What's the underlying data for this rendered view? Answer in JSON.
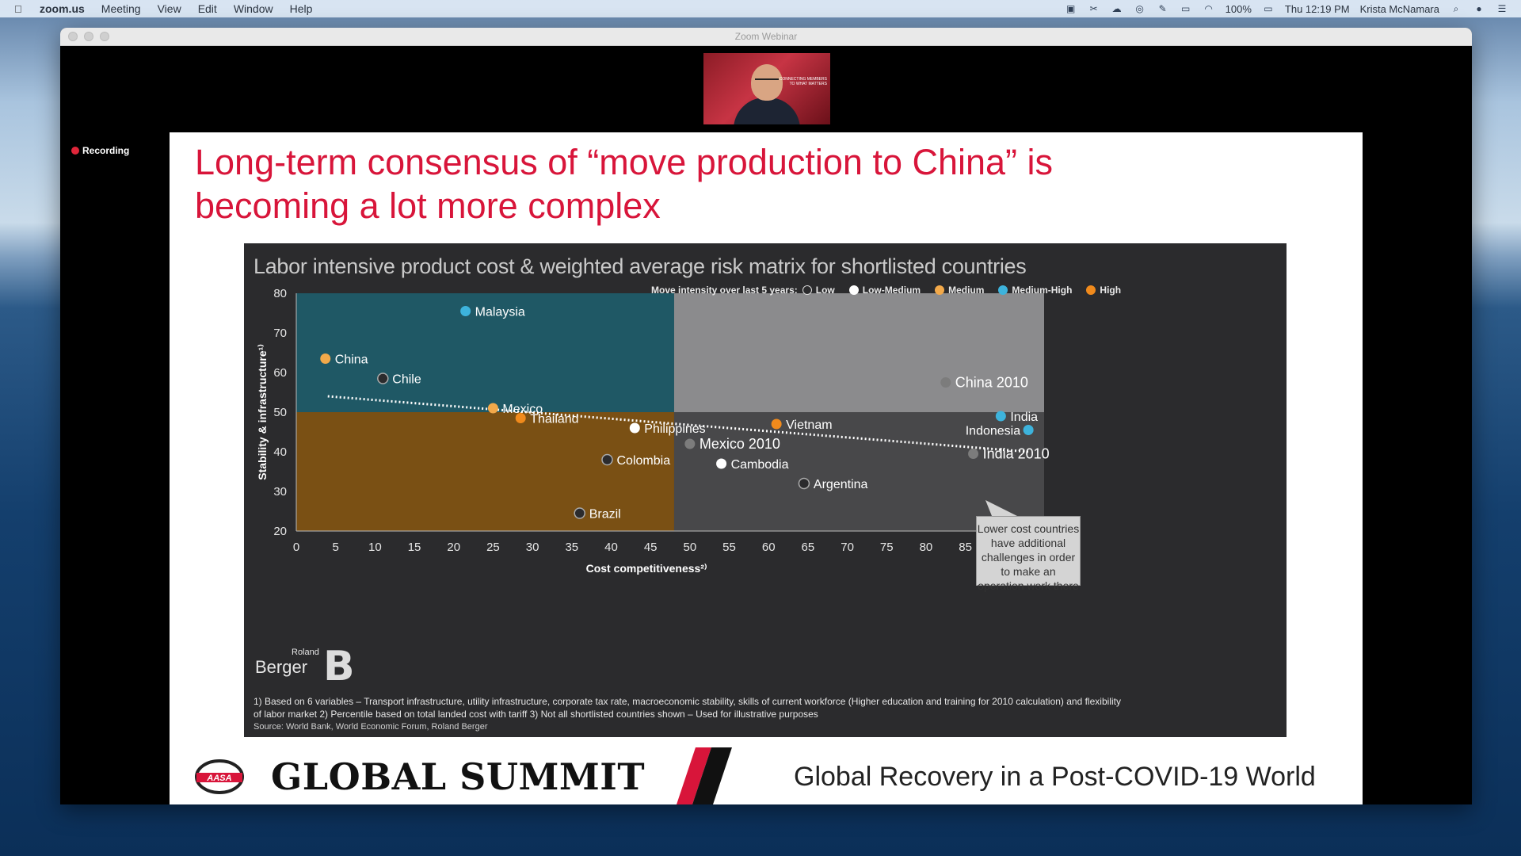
{
  "menubar": {
    "app": "zoom.us",
    "menus": [
      "Meeting",
      "View",
      "Edit",
      "Window",
      "Help"
    ],
    "battery": "100%",
    "clock": "Thu 12:19 PM",
    "user": "Krista McNamara"
  },
  "window": {
    "title": "Zoom Webinar",
    "recording_label": "Recording",
    "thumb_text": "CONNECTING MEMBERS TO WHAT MATTERS"
  },
  "slide": {
    "title_line1": "Long-term consensus of “move production to China” is",
    "title_line2": "becoming a lot more complex",
    "footnote1": "1) Based on 6 variables – Transport infrastructure, utility infrastructure, corporate tax rate, macroeconomic stability, skills of current workforce (Higher education and training for 2010 calculation) and flexibility",
    "footnote2": "of labor market   2) Percentile based on total landed cost with tariff   3) Not all shortlisted countries shown – Used for illustrative purposes",
    "source": "Source: World Bank, World Economic Forum, Roland Berger",
    "logo_small": "Roland",
    "logo_big": "Berger",
    "logo_mark": "B",
    "callout": "Lower cost countries have additional challenges in order to make an operation work there",
    "banner_logo": "AASA",
    "banner_title": "GLOBAL SUMMIT",
    "banner_tagline": "Global Recovery in a Post-COVID-19 World"
  },
  "chart_data": {
    "type": "scatter",
    "title": "Labor intensive product cost & weighted average risk matrix for shortlisted countries",
    "xlabel": "Cost competitiveness²⁾",
    "ylabel": "Stability & infrastructure¹⁾",
    "xlim": [
      0,
      95
    ],
    "ylim": [
      20,
      80
    ],
    "xticks": [
      0,
      5,
      10,
      15,
      20,
      25,
      30,
      35,
      40,
      45,
      50,
      55,
      60,
      65,
      70,
      75,
      80,
      85
    ],
    "yticks": [
      20,
      30,
      40,
      50,
      60,
      70,
      80
    ],
    "legend_title": "Move intensity over last 5 years:",
    "legend": [
      {
        "label": "Low",
        "color": "#2b2b2d"
      },
      {
        "label": "Low-Medium",
        "color": "#ffffff"
      },
      {
        "label": "Medium",
        "color": "#f2a94a"
      },
      {
        "label": "Medium-High",
        "color": "#3db3dc"
      },
      {
        "label": "High",
        "color": "#f08a1c"
      }
    ],
    "points": [
      {
        "label": "Malaysia",
        "x": 21.5,
        "y": 75.5,
        "category": "Medium-High"
      },
      {
        "label": "China",
        "x": 3.7,
        "y": 63.5,
        "category": "Medium"
      },
      {
        "label": "Chile",
        "x": 11,
        "y": 58.5,
        "category": "Low"
      },
      {
        "label": "Mexico",
        "x": 25,
        "y": 51,
        "category": "Medium"
      },
      {
        "label": "Thailand",
        "x": 28.5,
        "y": 48.5,
        "category": "High"
      },
      {
        "label": "Philippines",
        "x": 43,
        "y": 46,
        "category": "Low-Medium"
      },
      {
        "label": "Colombia",
        "x": 39.5,
        "y": 38,
        "category": "Low"
      },
      {
        "label": "Brazil",
        "x": 36,
        "y": 24.5,
        "category": "Low"
      },
      {
        "label": "Mexico 2010",
        "x": 50,
        "y": 42,
        "category": "2010"
      },
      {
        "label": "Cambodia",
        "x": 54,
        "y": 37,
        "category": "Low-Medium"
      },
      {
        "label": "Vietnam",
        "x": 61,
        "y": 47,
        "category": "High"
      },
      {
        "label": "Argentina",
        "x": 64.5,
        "y": 32,
        "category": "Low"
      },
      {
        "label": "China 2010",
        "x": 82.5,
        "y": 57.5,
        "category": "2010"
      },
      {
        "label": "India",
        "x": 89.5,
        "y": 49,
        "category": "Medium-High"
      },
      {
        "label": "Indonesia",
        "x": 93,
        "y": 45.5,
        "category": "Medium-High"
      },
      {
        "label": "India 2010",
        "x": 86,
        "y": 39.5,
        "category": "2010"
      }
    ],
    "trendline": {
      "from": [
        4,
        54
      ],
      "to": [
        93,
        40
      ]
    },
    "quadrants": {
      "split_x": 48,
      "split_y": 50
    },
    "colors": {
      "top_left": "#1f5865",
      "top_right": "#8b8b8d",
      "bottom_left": "#7a5014",
      "bottom_right": "#48484a",
      "year2010": "#7c7c7c"
    }
  }
}
